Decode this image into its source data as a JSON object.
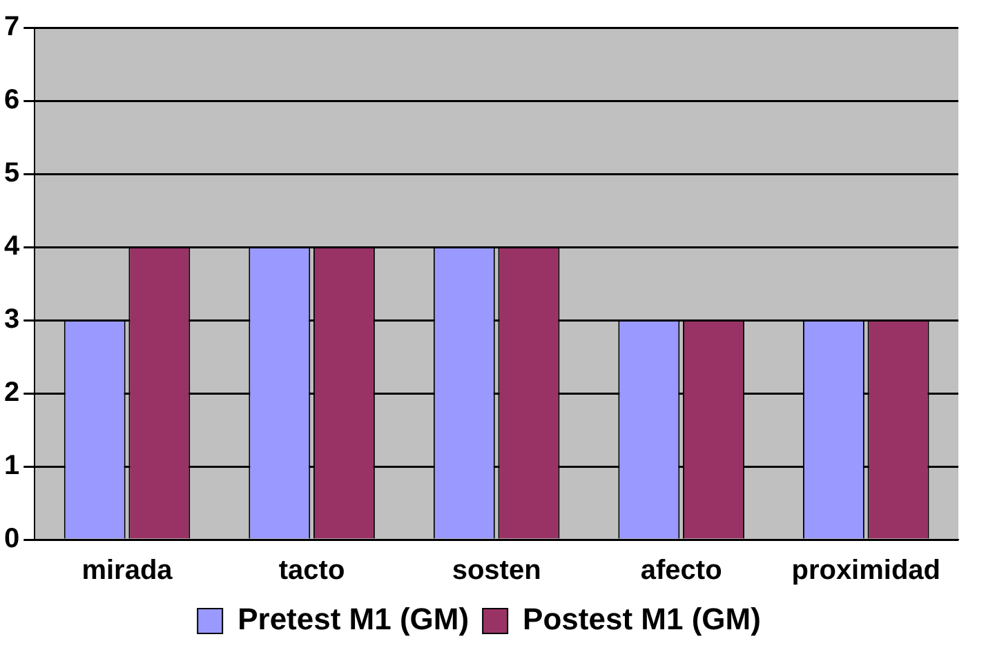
{
  "chart_data": {
    "type": "bar",
    "categories": [
      "mirada",
      "tacto",
      "sosten",
      "afecto",
      "proximidad"
    ],
    "series": [
      {
        "name": "Pretest M1 (GM)",
        "color": "#9999ff",
        "values": [
          3,
          4,
          4,
          3,
          3
        ]
      },
      {
        "name": "Postest M1 (GM)",
        "color": "#993366",
        "values": [
          4,
          4,
          4,
          3,
          3
        ]
      }
    ],
    "ylim": [
      0,
      7
    ],
    "yticks": [
      0,
      1,
      2,
      3,
      4,
      5,
      6,
      7
    ],
    "grid": "y",
    "legend": "bottom"
  }
}
